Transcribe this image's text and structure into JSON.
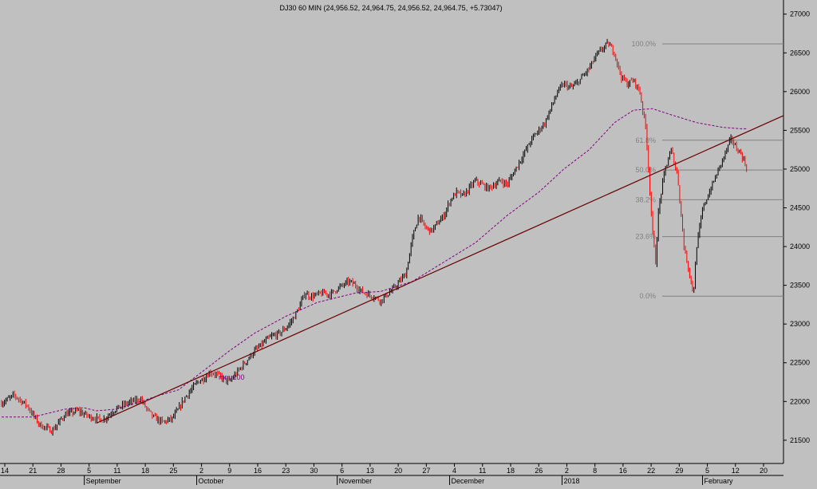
{
  "chart_data": {
    "type": "candlestick",
    "title": "DJ30 60 MIN (24,956.52, 24,964.75, 24,956.52, 24,964.75, +5.73047)",
    "ylim": [
      21200,
      27100
    ],
    "y_ticks": [
      21500,
      22000,
      22500,
      23000,
      23500,
      24000,
      24500,
      25000,
      25500,
      26000,
      26500,
      27000
    ],
    "y_tick_labels": [
      "21500",
      "22000",
      "22500",
      "23000",
      "23500",
      "24000",
      "24500",
      "25000",
      "25500",
      "26000",
      "26500",
      "27000"
    ],
    "x_day_ticks": [
      "14",
      "21",
      "28",
      "5",
      "11",
      "18",
      "25",
      "2",
      "9",
      "16",
      "23",
      "30",
      "6",
      "13",
      "20",
      "27",
      "4",
      "11",
      "18",
      "26",
      "2",
      "8",
      "16",
      "22",
      "29",
      "5",
      "12",
      "20"
    ],
    "x_month_labels": [
      "September",
      "October",
      "November",
      "December",
      "2018",
      "February"
    ],
    "ma_label": "mm 200",
    "price_path": [
      [
        0,
        21980
      ],
      [
        4,
        22080
      ],
      [
        8,
        21950
      ],
      [
        12,
        21700
      ],
      [
        16,
        21620
      ],
      [
        20,
        21830
      ],
      [
        24,
        21880
      ],
      [
        28,
        21800
      ],
      [
        32,
        21760
      ],
      [
        36,
        21900
      ],
      [
        40,
        21980
      ],
      [
        44,
        22030
      ],
      [
        46,
        21900
      ],
      [
        48,
        21800
      ],
      [
        51,
        21730
      ],
      [
        54,
        21780
      ],
      [
        56,
        21900
      ],
      [
        58,
        22050
      ],
      [
        60,
        22150
      ],
      [
        62,
        22250
      ],
      [
        64,
        22300
      ],
      [
        66,
        22380
      ],
      [
        68,
        22350
      ],
      [
        70,
        22300
      ],
      [
        72,
        22250
      ],
      [
        74,
        22350
      ],
      [
        76,
        22450
      ],
      [
        78,
        22550
      ],
      [
        80,
        22650
      ],
      [
        82,
        22720
      ],
      [
        84,
        22800
      ],
      [
        86,
        22850
      ],
      [
        88,
        22880
      ],
      [
        90,
        22950
      ],
      [
        92,
        23050
      ],
      [
        94,
        23200
      ],
      [
        96,
        23400
      ],
      [
        98,
        23350
      ],
      [
        100,
        23380
      ],
      [
        102,
        23400
      ],
      [
        104,
        23380
      ],
      [
        106,
        23450
      ],
      [
        108,
        23500
      ],
      [
        110,
        23550
      ],
      [
        112,
        23500
      ],
      [
        114,
        23420
      ],
      [
        116,
        23380
      ],
      [
        118,
        23350
      ],
      [
        120,
        23300
      ],
      [
        122,
        23380
      ],
      [
        124,
        23450
      ],
      [
        126,
        23550
      ],
      [
        128,
        23650
      ],
      [
        130,
        24100
      ],
      [
        132,
        24400
      ],
      [
        134,
        24250
      ],
      [
        136,
        24200
      ],
      [
        138,
        24300
      ],
      [
        140,
        24400
      ],
      [
        142,
        24600
      ],
      [
        144,
        24700
      ],
      [
        146,
        24650
      ],
      [
        148,
        24750
      ],
      [
        150,
        24850
      ],
      [
        152,
        24800
      ],
      [
        154,
        24750
      ],
      [
        156,
        24800
      ],
      [
        158,
        24850
      ],
      [
        160,
        24800
      ],
      [
        162,
        24950
      ],
      [
        164,
        25100
      ],
      [
        166,
        25250
      ],
      [
        168,
        25400
      ],
      [
        170,
        25500
      ],
      [
        172,
        25600
      ],
      [
        174,
        25800
      ],
      [
        176,
        26000
      ],
      [
        178,
        26100
      ],
      [
        180,
        26050
      ],
      [
        182,
        26100
      ],
      [
        184,
        26200
      ],
      [
        186,
        26300
      ],
      [
        188,
        26450
      ],
      [
        190,
        26550
      ],
      [
        192,
        26620
      ],
      [
        194,
        26500
      ],
      [
        196,
        26200
      ],
      [
        198,
        26100
      ],
      [
        200,
        26150
      ],
      [
        202,
        26000
      ],
      [
        204,
        25500
      ],
      [
        206,
        24200
      ],
      [
        207,
        23800
      ],
      [
        208,
        24500
      ],
      [
        210,
        25000
      ],
      [
        212,
        25250
      ],
      [
        214,
        24900
      ],
      [
        216,
        24000
      ],
      [
        218,
        23600
      ],
      [
        219,
        23380
      ],
      [
        220,
        24000
      ],
      [
        222,
        24500
      ],
      [
        224,
        24700
      ],
      [
        226,
        24900
      ],
      [
        228,
        25100
      ],
      [
        230,
        25300
      ],
      [
        231,
        25400
      ],
      [
        232,
        25300
      ],
      [
        234,
        25200
      ],
      [
        236,
        25000
      ]
    ],
    "ma_path": [
      [
        0,
        21800
      ],
      [
        10,
        21800
      ],
      [
        20,
        21900
      ],
      [
        26,
        21920
      ],
      [
        30,
        21880
      ],
      [
        36,
        21900
      ],
      [
        44,
        22000
      ],
      [
        50,
        22080
      ],
      [
        56,
        22150
      ],
      [
        64,
        22400
      ],
      [
        72,
        22650
      ],
      [
        80,
        22880
      ],
      [
        90,
        23100
      ],
      [
        100,
        23280
      ],
      [
        112,
        23400
      ],
      [
        120,
        23420
      ],
      [
        130,
        23550
      ],
      [
        140,
        23800
      ],
      [
        150,
        24050
      ],
      [
        160,
        24400
      ],
      [
        170,
        24700
      ],
      [
        178,
        25000
      ],
      [
        186,
        25250
      ],
      [
        194,
        25600
      ],
      [
        200,
        25760
      ],
      [
        206,
        25780
      ],
      [
        212,
        25700
      ],
      [
        220,
        25600
      ],
      [
        228,
        25540
      ],
      [
        234,
        25520
      ],
      [
        236,
        25520
      ]
    ],
    "trend_line": [
      [
        30,
        21720
      ],
      [
        248,
        25690
      ]
    ],
    "fibonacci": {
      "high": 26616,
      "low": 23360,
      "levels": [
        {
          "label": "100.0%",
          "ratio": 1.0
        },
        {
          "label": "61.8%",
          "ratio": 0.618
        },
        {
          "label": "50.0%",
          "ratio": 0.5
        },
        {
          "label": "38.2%",
          "ratio": 0.382
        },
        {
          "label": "23.6%",
          "ratio": 0.236
        },
        {
          "label": "0.0%",
          "ratio": 0.0
        }
      ]
    },
    "colors": {
      "up": "#000000",
      "down": "#ff0000",
      "ma": "#800080",
      "trend": "#660000",
      "fib": "#808080",
      "axis_text": "#000000"
    }
  }
}
